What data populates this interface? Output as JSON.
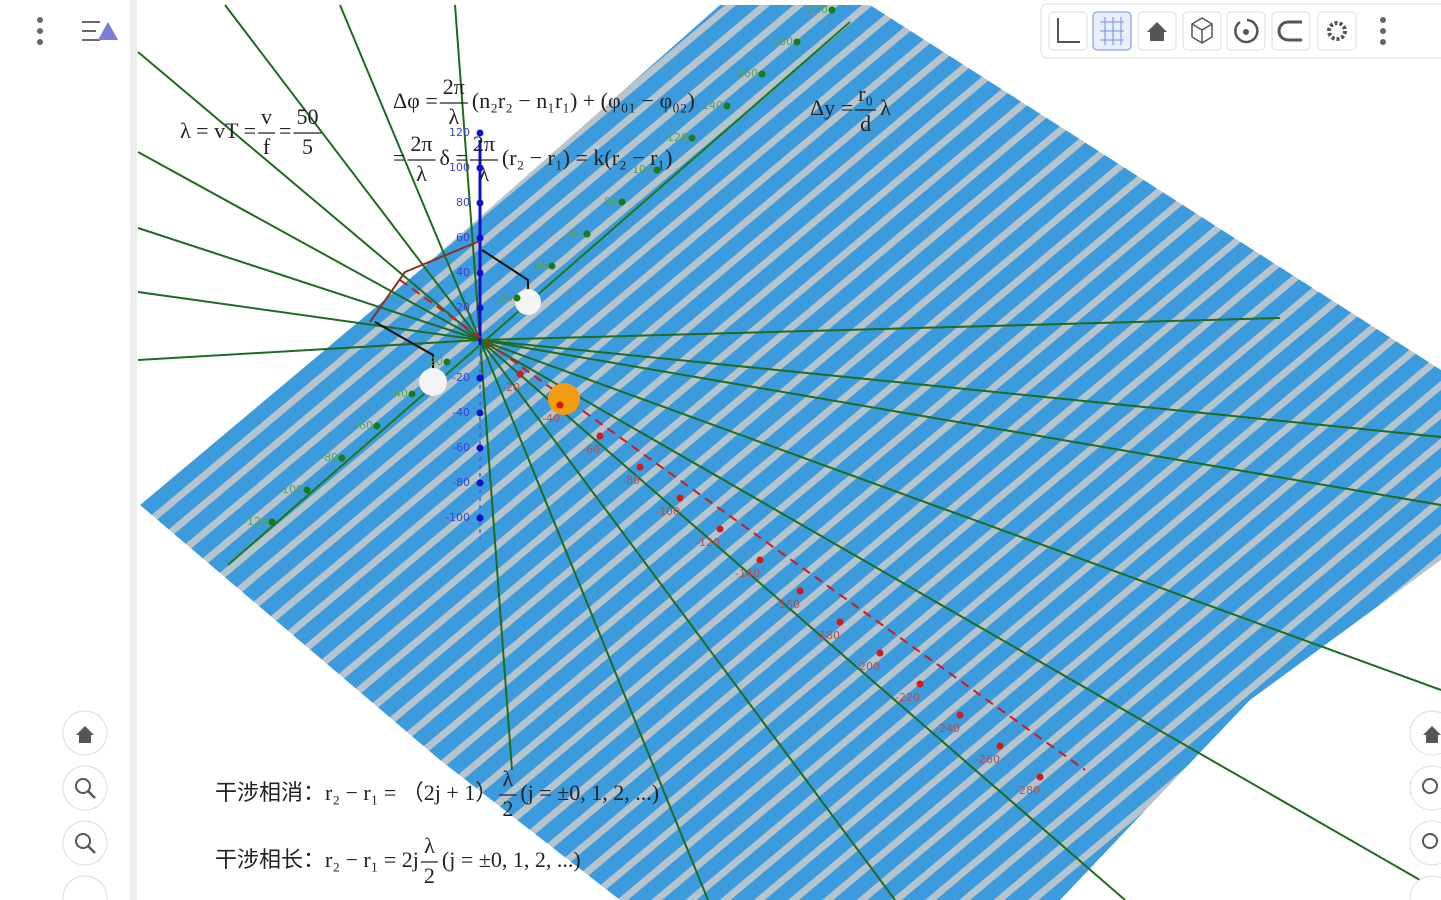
{
  "formulas": [
    [
      "λ = vT = ",
      {
        "num": "v",
        "den": "f"
      },
      " = ",
      {
        "num": "50",
        "den": "5"
      }
    ],
    [
      "Δφ = ",
      {
        "num": "2π",
        "den": "λ"
      },
      " (n₂r₂ − n₁r₁) + (φ₀₁ − φ₀₂)"
    ],
    [
      "= ",
      {
        "num": "2π",
        "den": "λ"
      },
      " δ = ",
      {
        "num": "2π",
        "den": "λ"
      },
      " (r₂ − r₁) = k(r₂ − r₁)"
    ],
    [
      "Δy = ",
      {
        "num": "r₀",
        "den": "d"
      },
      " λ"
    ],
    [
      "干涉相消：r₂ − r₁ = （2j + 1）",
      {
        "num": "λ",
        "den": "2"
      },
      "(j = ±0, 1, 2, ...)"
    ],
    [
      "干涉相长：r₂ − r₁ = 2j",
      {
        "num": "λ",
        "den": "2"
      },
      "(j = ±0, 1, 2, ...)"
    ]
  ],
  "axes": {
    "green": [
      200,
      180,
      160,
      140,
      120,
      100,
      80,
      60,
      40,
      20,
      -20,
      -40,
      -60,
      -80,
      -100,
      -120
    ],
    "blue": [
      120,
      100,
      80,
      60,
      40,
      20,
      -20,
      -40,
      -60,
      -80,
      -100
    ],
    "red": [
      -20,
      -40,
      -60,
      -80,
      -100,
      -120,
      -140,
      -160,
      -180,
      -200,
      -220,
      -240,
      -260,
      -280
    ]
  }
}
